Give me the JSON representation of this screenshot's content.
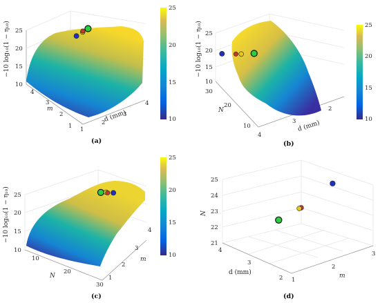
{
  "figure": {
    "panels": [
      {
        "id": "a",
        "caption": "(a)",
        "zlabel": "−10 log₁₀(1 − η₁₀)",
        "xlabel": "d (mm)",
        "ylabel": "m",
        "xticks": [
          "1",
          "2",
          "3",
          "4"
        ],
        "yticks": [
          "1",
          "2",
          "3",
          "4"
        ],
        "zticks": [
          "10",
          "15",
          "20",
          "25"
        ],
        "cbar_ticks": [
          "10",
          "15",
          "20",
          "25"
        ]
      },
      {
        "id": "b",
        "caption": "(b)",
        "zlabel": "−10 log₁₀(1 − η₁₀)",
        "xlabel": "d (mm)",
        "ylabel": "N",
        "xticks": [
          "2",
          "3",
          "4"
        ],
        "yticks": [
          "10",
          "20",
          "30"
        ],
        "zticks": [
          "10",
          "15",
          "20",
          "25"
        ],
        "cbar_ticks": [
          "10",
          "15",
          "20",
          "25"
        ]
      },
      {
        "id": "c",
        "caption": "(c)",
        "zlabel": "−10 log₁₀(1 − η₁₀)",
        "xlabel": "N",
        "ylabel": "m",
        "xticks": [
          "10",
          "20",
          "30"
        ],
        "yticks": [
          "1",
          "2",
          "3",
          "4"
        ],
        "zticks": [
          "10",
          "15",
          "20",
          "25"
        ],
        "cbar_ticks": [
          "10",
          "15",
          "20",
          "25"
        ]
      },
      {
        "id": "d",
        "caption": "(d)",
        "zlabel": "N",
        "xlabel": "m",
        "ylabel": "d (mm)",
        "xticks": [
          "1",
          "2",
          "3"
        ],
        "yticks": [
          "2",
          "3",
          "4"
        ],
        "zticks": [
          "21",
          "22",
          "23",
          "24",
          "25"
        ]
      }
    ]
  },
  "chart_data": [
    {
      "type": "surface",
      "panel": "a",
      "x_name": "d (mm)",
      "y_name": "m",
      "z_name": "−10 log10(1 − η10)",
      "xlim": [
        1,
        4
      ],
      "ylim": [
        1,
        4
      ],
      "zlim": [
        10,
        25
      ],
      "colormap": "parula",
      "clim": [
        10,
        25
      ],
      "markers": [
        {
          "color": "#1f2fbf",
          "x": 2.6,
          "y": 3.1,
          "z": 23.2
        },
        {
          "color": "#e8c81c",
          "x": 2.95,
          "y": 3.15,
          "z": 23.3
        },
        {
          "color": "#c0392b",
          "x": 3.0,
          "y": 3.2,
          "z": 23.3
        },
        {
          "color": "#2ecc40",
          "x": 3.25,
          "y": 3.2,
          "z": 23.4
        }
      ]
    },
    {
      "type": "surface",
      "panel": "b",
      "x_name": "d (mm)",
      "y_name": "N",
      "z_name": "−10 log10(1 − η10)",
      "xlim": [
        2,
        4
      ],
      "ylim": [
        10,
        30
      ],
      "zlim": [
        10,
        25
      ],
      "colormap": "parula",
      "clim": [
        10,
        25
      ],
      "markers": [
        {
          "color": "#1f2fbf",
          "x": 2.6,
          "y": 25,
          "z": 22.6
        },
        {
          "color": "#e8c81c",
          "x": 2.45,
          "y": 23,
          "z": 22.3
        },
        {
          "color": "#c0392b",
          "x": 2.5,
          "y": 23.5,
          "z": 22.4
        },
        {
          "color": "#2ecc40",
          "x": 2.3,
          "y": 22,
          "z": 22.0
        }
      ]
    },
    {
      "type": "surface",
      "panel": "c",
      "x_name": "N",
      "y_name": "m",
      "z_name": "−10 log10(1 − η10)",
      "xlim": [
        10,
        30
      ],
      "ylim": [
        1,
        4
      ],
      "zlim": [
        10,
        25
      ],
      "colormap": "parula",
      "clim": [
        10,
        25
      ],
      "markers": [
        {
          "color": "#2ecc40",
          "x": 22,
          "y": 3.0,
          "z": 23.3
        },
        {
          "color": "#e8c81c",
          "x": 23,
          "y": 3.1,
          "z": 23.4
        },
        {
          "color": "#c0392b",
          "x": 23.4,
          "y": 3.1,
          "z": 23.4
        },
        {
          "color": "#1f2fbf",
          "x": 24.5,
          "y": 3.2,
          "z": 23.5
        }
      ]
    },
    {
      "type": "scatter3d",
      "panel": "d",
      "x_name": "m",
      "y_name": "d (mm)",
      "z_name": "N",
      "xlim": [
        1,
        3
      ],
      "ylim": [
        2,
        4
      ],
      "zlim": [
        21,
        25
      ],
      "points": [
        {
          "color": "#1f2fbf",
          "m": 2.6,
          "d": 2.7,
          "N": 24.6
        },
        {
          "color": "#c0392b",
          "m": 2.0,
          "d": 2.9,
          "N": 23.4
        },
        {
          "color": "#e8c81c",
          "m": 1.95,
          "d": 2.9,
          "N": 23.4
        },
        {
          "color": "#2ecc40",
          "m": 1.7,
          "d": 3.2,
          "N": 22.6
        }
      ]
    }
  ]
}
